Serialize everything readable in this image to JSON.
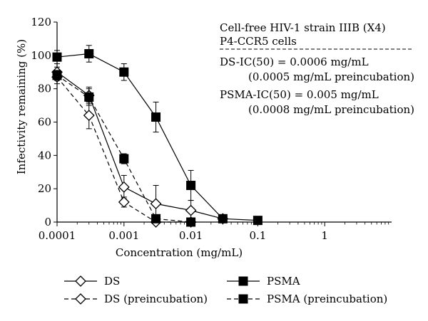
{
  "chart_data": {
    "type": "line",
    "title": "",
    "xlabel": "Concentration (mg/mL)",
    "ylabel": "Infectivity remaining (%)",
    "xscale": "log",
    "xlim": [
      0.0001,
      10
    ],
    "ylim": [
      0,
      120
    ],
    "xticks": [
      0.0001,
      0.001,
      0.01,
      0.1,
      1
    ],
    "xticklabels": [
      "0.0001",
      "0.001",
      "0.01",
      "0.1",
      "1"
    ],
    "yticks": [
      0,
      20,
      40,
      60,
      80,
      100,
      120
    ],
    "yticklabels": [
      "0",
      "20",
      "40",
      "60",
      "80",
      "100",
      "120"
    ],
    "grid": false,
    "legend": "bottom",
    "annotation_lines": [
      "Cell-free HIV-1 strain IIIB (X4)",
      "P4-CCR5 cells",
      "DS-IC(50) = 0.0006 mg/mL",
      "(0.0005 mg/mL preincubation)",
      "PSMA-IC(50) = 0.005 mg/mL",
      "(0.0008 mg/mL preincubation)"
    ],
    "series": [
      {
        "name": "DS",
        "marker": "diamond-open",
        "line": "solid",
        "x": [
          0.0001,
          0.0003,
          0.001,
          0.003,
          0.01,
          0.03
        ],
        "y": [
          90,
          76,
          21,
          11,
          7,
          2
        ],
        "err": [
          3,
          5,
          7,
          11,
          6,
          1
        ]
      },
      {
        "name": "DS (preincubation)",
        "marker": "diamond-open",
        "line": "dashed",
        "x": [
          0.0001,
          0.0003,
          0.001,
          0.003,
          0.01
        ],
        "y": [
          87,
          64,
          12,
          0,
          0
        ],
        "err": [
          4,
          8,
          3,
          2,
          0
        ]
      },
      {
        "name": "PSMA",
        "marker": "square-filled",
        "line": "solid",
        "x": [
          0.0001,
          0.0003,
          0.001,
          0.003,
          0.01,
          0.03,
          0.1
        ],
        "y": [
          99,
          101,
          90,
          63,
          22,
          2,
          1
        ],
        "err": [
          4,
          5,
          5,
          9,
          9,
          1,
          2
        ]
      },
      {
        "name": "PSMA (preincubation)",
        "marker": "square-filled",
        "line": "dashed",
        "x": [
          0.0001,
          0.0003,
          0.001,
          0.003,
          0.01
        ],
        "y": [
          88,
          75,
          38,
          2,
          0
        ],
        "err": [
          3,
          5,
          3,
          2,
          0
        ]
      }
    ]
  }
}
